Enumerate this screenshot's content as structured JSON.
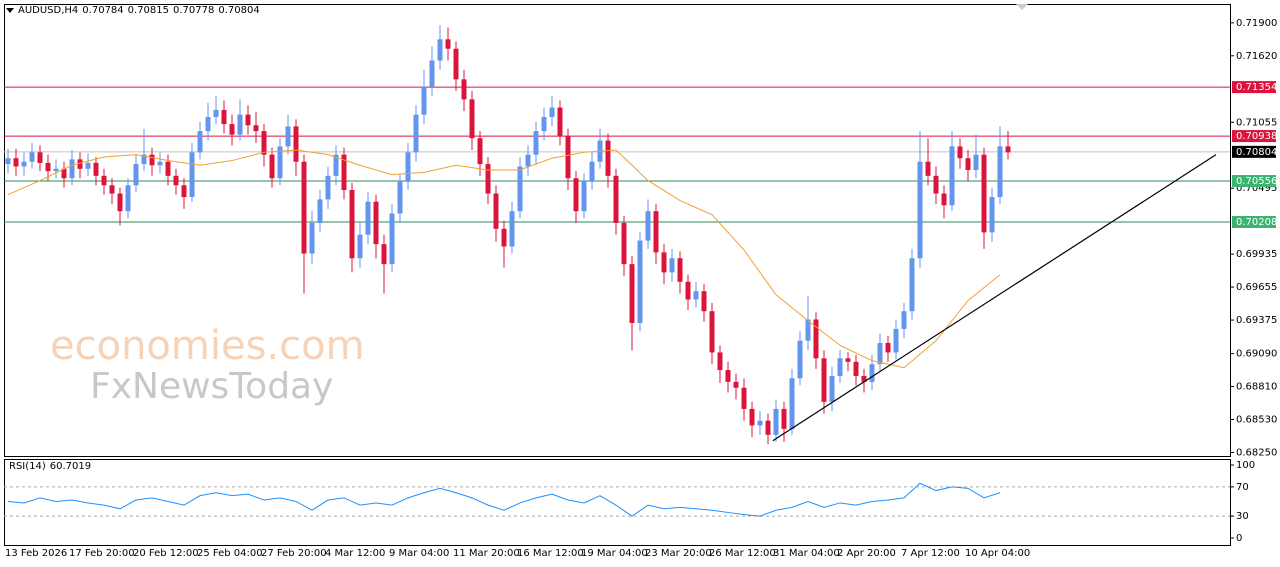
{
  "header": {
    "symbol": "AUDUSD,H4",
    "ohlc": [
      0.70784,
      0.70815,
      0.70778,
      0.70804
    ]
  },
  "watermark": [
    "economies.com",
    "FxNewsToday"
  ],
  "chart_data": [
    {
      "type": "candlestick",
      "up_color": "#6495ed",
      "down_color": "#dc143c",
      "categories": [
        "13 Feb 2026",
        null,
        null,
        null,
        null,
        null,
        null,
        null,
        "17 Feb 20:00",
        null,
        null,
        null,
        null,
        null,
        null,
        null,
        "20 Feb 12:00",
        null,
        null,
        null,
        null,
        null,
        null,
        null,
        "25 Feb 04:00",
        null,
        null,
        null,
        null,
        null,
        null,
        null,
        "27 Feb 20:00",
        null,
        null,
        null,
        null,
        null,
        null,
        null,
        "4 Mar 12:00",
        null,
        null,
        null,
        null,
        null,
        null,
        null,
        "9 Mar 04:00",
        null,
        null,
        null,
        null,
        null,
        null,
        null,
        "11 Mar 20:00",
        null,
        null,
        null,
        null,
        null,
        null,
        null,
        "16 Mar 12:00",
        null,
        null,
        null,
        null,
        null,
        null,
        null,
        "19 Mar 04:00",
        null,
        null,
        null,
        null,
        null,
        null,
        null,
        "23 Mar 20:00",
        null,
        null,
        null,
        null,
        null,
        null,
        null,
        "26 Mar 12:00",
        null,
        null,
        null,
        null,
        null,
        null,
        null,
        "31 Mar 04:00",
        null,
        null,
        null,
        null,
        null,
        null,
        null,
        "2 Apr 20:00",
        null,
        null,
        null,
        null,
        null,
        null,
        null,
        "7 Apr 12:00",
        null,
        null,
        null,
        null,
        null,
        null,
        null,
        "10 Apr 04:00",
        null,
        null,
        null,
        null,
        null
      ],
      "open": [
        0.707,
        0.7075,
        0.7068,
        0.7072,
        0.708,
        0.7071,
        0.7064,
        0.7066,
        0.7058,
        0.7074,
        0.7066,
        0.7071,
        0.706,
        0.7052,
        0.7045,
        0.703,
        0.7052,
        0.707,
        0.7078,
        0.7069,
        0.7072,
        0.706,
        0.7052,
        0.7042,
        0.708,
        0.7098,
        0.711,
        0.7116,
        0.7104,
        0.7095,
        0.7112,
        0.7103,
        0.7098,
        0.7078,
        0.7058,
        0.7085,
        0.7102,
        0.7072,
        0.6994,
        0.702,
        0.704,
        0.706,
        0.7078,
        0.7048,
        0.699,
        0.701,
        0.7038,
        0.7002,
        0.6985,
        0.7028,
        0.7055,
        0.708,
        0.7112,
        0.7136,
        0.7158,
        0.7176,
        0.7168,
        0.7142,
        0.7125,
        0.7092,
        0.707,
        0.7045,
        0.7015,
        0.7,
        0.703,
        0.7068,
        0.7078,
        0.7098,
        0.711,
        0.7118,
        0.7094,
        0.7058,
        0.703,
        0.7055,
        0.7072,
        0.709,
        0.706,
        0.702,
        0.6985,
        0.6935,
        0.7005,
        0.703,
        0.6995,
        0.6978,
        0.699,
        0.697,
        0.6955,
        0.6962,
        0.6945,
        0.691,
        0.6895,
        0.6885,
        0.688,
        0.6862,
        0.6848,
        0.6852,
        0.684,
        0.6862,
        0.6845,
        0.6888,
        0.692,
        0.6938,
        0.6905,
        0.6868,
        0.689,
        0.6905,
        0.6902,
        0.689,
        0.6885,
        0.69,
        0.6918,
        0.691,
        0.693,
        0.6945,
        0.699,
        0.7072,
        0.706,
        0.7045,
        0.7035,
        0.7085,
        0.7075,
        0.7065,
        0.7078,
        0.7012,
        0.7042,
        0.7085
      ],
      "high": [
        0.7083,
        0.7083,
        0.708,
        0.7088,
        0.7086,
        0.7078,
        0.7074,
        0.7072,
        0.7082,
        0.708,
        0.7079,
        0.7076,
        0.7066,
        0.7058,
        0.705,
        0.7058,
        0.7078,
        0.71,
        0.7084,
        0.708,
        0.7078,
        0.7066,
        0.7058,
        0.7088,
        0.7106,
        0.7122,
        0.7128,
        0.7124,
        0.7112,
        0.7125,
        0.712,
        0.7114,
        0.7104,
        0.7084,
        0.7092,
        0.7112,
        0.7108,
        0.7078,
        0.703,
        0.7048,
        0.7068,
        0.7086,
        0.7084,
        0.7054,
        0.702,
        0.7046,
        0.7044,
        0.701,
        0.7036,
        0.7062,
        0.7088,
        0.712,
        0.715,
        0.717,
        0.7188,
        0.7186,
        0.7174,
        0.715,
        0.7132,
        0.7098,
        0.7076,
        0.7052,
        0.7022,
        0.7038,
        0.7076,
        0.7086,
        0.7106,
        0.7118,
        0.7128,
        0.7124,
        0.71,
        0.7064,
        0.7062,
        0.708,
        0.71,
        0.7096,
        0.7066,
        0.7026,
        0.6992,
        0.7012,
        0.704,
        0.7036,
        0.7002,
        0.6998,
        0.6996,
        0.6976,
        0.697,
        0.6968,
        0.6952,
        0.6916,
        0.6902,
        0.6892,
        0.6888,
        0.6868,
        0.686,
        0.6858,
        0.687,
        0.6868,
        0.6896,
        0.6928,
        0.6958,
        0.6944,
        0.6912,
        0.6898,
        0.6912,
        0.691,
        0.6908,
        0.6896,
        0.6908,
        0.6926,
        0.6924,
        0.6938,
        0.6952,
        0.6998,
        0.7098,
        0.7092,
        0.7068,
        0.7052,
        0.7098,
        0.7092,
        0.7082,
        0.7095,
        0.7084,
        0.705,
        0.7102,
        0.7098
      ],
      "low": [
        0.7062,
        0.706,
        0.706,
        0.7066,
        0.7064,
        0.7056,
        0.7058,
        0.705,
        0.7052,
        0.7058,
        0.706,
        0.7052,
        0.7044,
        0.7036,
        0.7018,
        0.7024,
        0.7046,
        0.7064,
        0.706,
        0.7062,
        0.7052,
        0.7044,
        0.7032,
        0.7038,
        0.7074,
        0.709,
        0.7104,
        0.7096,
        0.7086,
        0.709,
        0.7095,
        0.7088,
        0.7068,
        0.705,
        0.7052,
        0.7078,
        0.706,
        0.696,
        0.6985,
        0.7012,
        0.7032,
        0.7052,
        0.704,
        0.6978,
        0.6982,
        0.7002,
        0.699,
        0.696,
        0.6978,
        0.702,
        0.7048,
        0.7072,
        0.7104,
        0.7128,
        0.715,
        0.7158,
        0.7132,
        0.7115,
        0.7082,
        0.706,
        0.7036,
        0.7004,
        0.6982,
        0.6994,
        0.7024,
        0.706,
        0.707,
        0.709,
        0.7102,
        0.7086,
        0.7048,
        0.702,
        0.7024,
        0.7048,
        0.7066,
        0.705,
        0.701,
        0.6975,
        0.6912,
        0.6928,
        0.6998,
        0.6985,
        0.6968,
        0.697,
        0.696,
        0.6946,
        0.6948,
        0.6936,
        0.69,
        0.6884,
        0.6876,
        0.687,
        0.6852,
        0.6838,
        0.684,
        0.6832,
        0.6834,
        0.6834,
        0.684,
        0.6882,
        0.6912,
        0.6896,
        0.6858,
        0.686,
        0.6884,
        0.6894,
        0.6882,
        0.6876,
        0.6878,
        0.6894,
        0.6902,
        0.6904,
        0.6922,
        0.6938,
        0.6982,
        0.7052,
        0.7036,
        0.7024,
        0.703,
        0.7066,
        0.7056,
        0.7058,
        0.6998,
        0.7004,
        0.7036,
        0.7074
      ],
      "close": [
        0.7075,
        0.7068,
        0.7072,
        0.708,
        0.7071,
        0.7064,
        0.7066,
        0.7058,
        0.7074,
        0.7066,
        0.7071,
        0.706,
        0.7052,
        0.7045,
        0.703,
        0.7052,
        0.707,
        0.7078,
        0.7069,
        0.7072,
        0.706,
        0.7052,
        0.7042,
        0.708,
        0.7098,
        0.711,
        0.7116,
        0.7104,
        0.7095,
        0.7112,
        0.7103,
        0.7098,
        0.7078,
        0.7058,
        0.7085,
        0.7102,
        0.7072,
        0.6994,
        0.702,
        0.704,
        0.706,
        0.7078,
        0.7048,
        0.699,
        0.701,
        0.7038,
        0.7002,
        0.6985,
        0.7028,
        0.7055,
        0.708,
        0.7112,
        0.7136,
        0.7158,
        0.7176,
        0.7168,
        0.7142,
        0.7125,
        0.7092,
        0.707,
        0.7045,
        0.7015,
        0.7,
        0.703,
        0.7068,
        0.7078,
        0.7098,
        0.711,
        0.7118,
        0.7094,
        0.7058,
        0.703,
        0.7055,
        0.7072,
        0.709,
        0.706,
        0.702,
        0.6985,
        0.6935,
        0.7005,
        0.703,
        0.6995,
        0.6978,
        0.699,
        0.697,
        0.6955,
        0.6962,
        0.6945,
        0.691,
        0.6895,
        0.6885,
        0.688,
        0.6862,
        0.6848,
        0.6852,
        0.684,
        0.6862,
        0.6845,
        0.6888,
        0.692,
        0.6938,
        0.6905,
        0.6868,
        0.689,
        0.6905,
        0.6902,
        0.689,
        0.6885,
        0.69,
        0.6918,
        0.691,
        0.693,
        0.6945,
        0.699,
        0.7072,
        0.706,
        0.7045,
        0.7035,
        0.7085,
        0.7075,
        0.7065,
        0.7078,
        0.7012,
        0.7042,
        0.7085,
        0.708
      ],
      "ylim": [
        0.6822,
        0.7206
      ],
      "yticks": [
        {
          "value": 0.719,
          "label": "0.71900"
        },
        {
          "value": 0.7162,
          "label": "0.71620"
        },
        0.71055,
        0.70495,
        0.69935,
        0.69655,
        0.69375,
        {
          "value": 0.6909,
          "label": "0.69090"
        },
        {
          "value": 0.6881,
          "label": "0.68810"
        },
        {
          "value": 0.6853,
          "label": "0.68530"
        },
        {
          "value": 0.6825,
          "label": "0.68250"
        }
      ],
      "levels": [
        {
          "value": 0.71354,
          "color": "#dc143c",
          "box": "#dc143c"
        },
        {
          "value": 0.70938,
          "color": "#dc143c",
          "box": "#dc143c"
        },
        {
          "value": 0.70804,
          "color": "#c0c0c0",
          "box": "#000000"
        },
        {
          "value": 0.70556,
          "color": "#2e8b57",
          "box": "#3cb371"
        },
        {
          "value": 0.70208,
          "color": "#2e8b57",
          "box": "#3cb371"
        }
      ],
      "ma": {
        "color": "#f0a030",
        "x": [
          0,
          4,
          8,
          12,
          16,
          20,
          24,
          28,
          32,
          36,
          40,
          44,
          48,
          52,
          56,
          60,
          64,
          68,
          72,
          76,
          80,
          84,
          88,
          92,
          96,
          100,
          104,
          108,
          112,
          116,
          120,
          124
        ],
        "values": [
          0.7044,
          0.7056,
          0.7069,
          0.7076,
          0.7078,
          0.7073,
          0.7069,
          0.7073,
          0.708,
          0.7082,
          0.7078,
          0.7069,
          0.7061,
          0.7063,
          0.7069,
          0.7065,
          0.7065,
          0.7075,
          0.708,
          0.7082,
          0.7056,
          0.7039,
          0.7027,
          0.6997,
          0.6959,
          0.6937,
          0.6916,
          0.6903,
          0.6897,
          0.692,
          0.6954,
          0.6976
        ]
      },
      "trendline": {
        "color": "#000000",
        "x": [
          95.6,
          151
        ],
        "values": [
          0.6835,
          0.7078
        ]
      }
    },
    {
      "type": "line",
      "title": "RSI(14)",
      "value": 60.7019,
      "color": "#1e90ff",
      "x": [
        0,
        2,
        4,
        6,
        8,
        10,
        12,
        14,
        16,
        18,
        20,
        22,
        24,
        26,
        28,
        30,
        32,
        34,
        36,
        38,
        40,
        42,
        44,
        46,
        48,
        50,
        52,
        54,
        56,
        58,
        60,
        62,
        64,
        66,
        68,
        70,
        72,
        74,
        76,
        78,
        80,
        82,
        84,
        86,
        88,
        90,
        92,
        94,
        96,
        98,
        100,
        102,
        104,
        106,
        108,
        110,
        112,
        114,
        116,
        118,
        120,
        122,
        124
      ],
      "values": [
        50,
        48,
        55,
        50,
        52,
        48,
        45,
        40,
        52,
        55,
        50,
        45,
        58,
        62,
        58,
        60,
        52,
        55,
        50,
        38,
        52,
        55,
        45,
        48,
        45,
        55,
        62,
        68,
        62,
        55,
        45,
        38,
        48,
        55,
        60,
        52,
        48,
        58,
        45,
        30,
        45,
        40,
        42,
        40,
        38,
        35,
        32,
        30,
        38,
        42,
        50,
        42,
        48,
        45,
        50,
        52,
        55,
        75,
        65,
        70,
        68,
        55,
        62
      ],
      "ylim": [
        -9.6,
        108.2
      ],
      "yticks": [
        0,
        30,
        70,
        100
      ],
      "levels": [
        30,
        70
      ]
    }
  ]
}
